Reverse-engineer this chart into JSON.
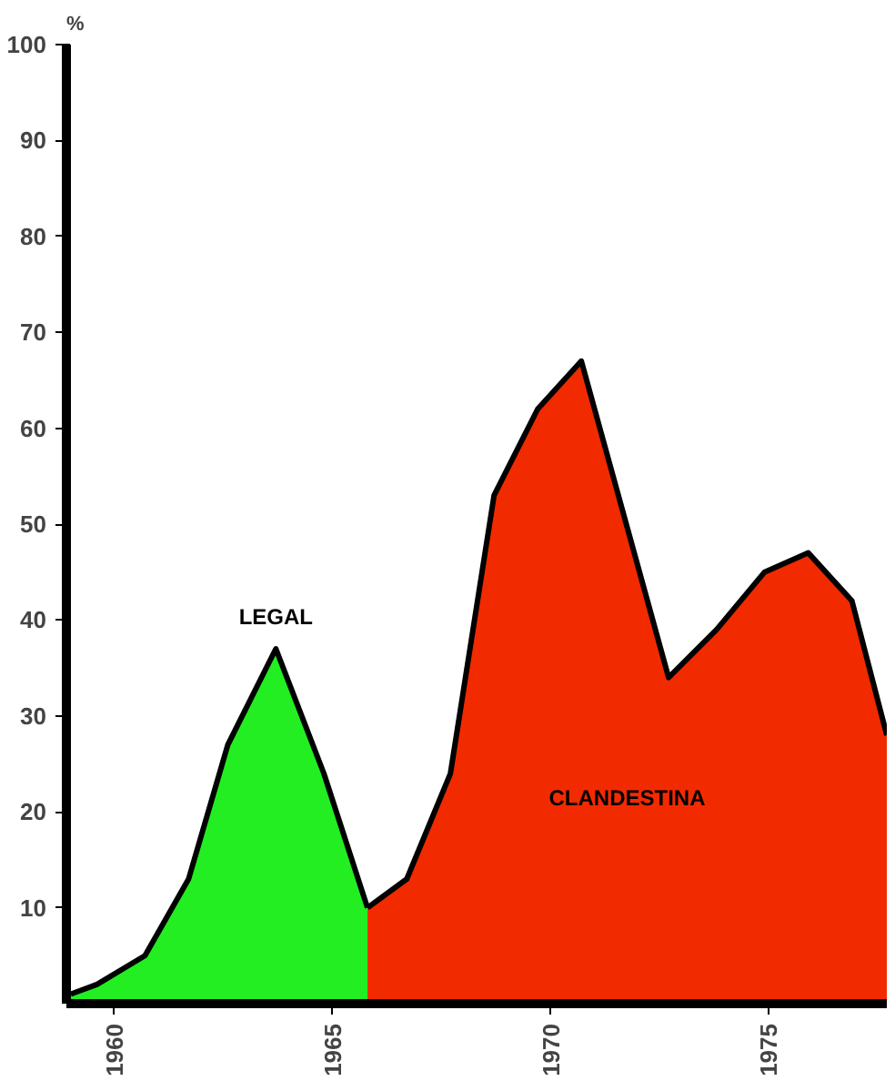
{
  "chart_data": {
    "type": "area",
    "ylabel": "%",
    "xlim": [
      1958.9,
      1977.7
    ],
    "ylim": [
      0,
      100
    ],
    "xticks": [
      1960,
      1965,
      1970,
      1975
    ],
    "yticks": [
      10,
      20,
      30,
      40,
      50,
      60,
      70,
      80,
      90,
      100
    ],
    "grid": false,
    "series": [
      {
        "name": "LEGAL",
        "color": "#22ee22",
        "x": [
          1959.0,
          1959.6,
          1960.7,
          1961.7,
          1962.6,
          1963.7,
          1964.8,
          1965.8
        ],
        "values": [
          1,
          2,
          5,
          13,
          27,
          37,
          24,
          10
        ]
      },
      {
        "name": "CLANDESTINA",
        "color": "#f22a00",
        "x": [
          1965.8,
          1966.7,
          1967.7,
          1968.7,
          1969.7,
          1970.7,
          1972.7,
          1973.8,
          1974.9,
          1975.9,
          1976.9,
          1977.7
        ],
        "values": [
          10,
          13,
          24,
          53,
          62,
          67,
          34,
          39,
          45,
          47,
          42,
          28
        ]
      }
    ]
  }
}
